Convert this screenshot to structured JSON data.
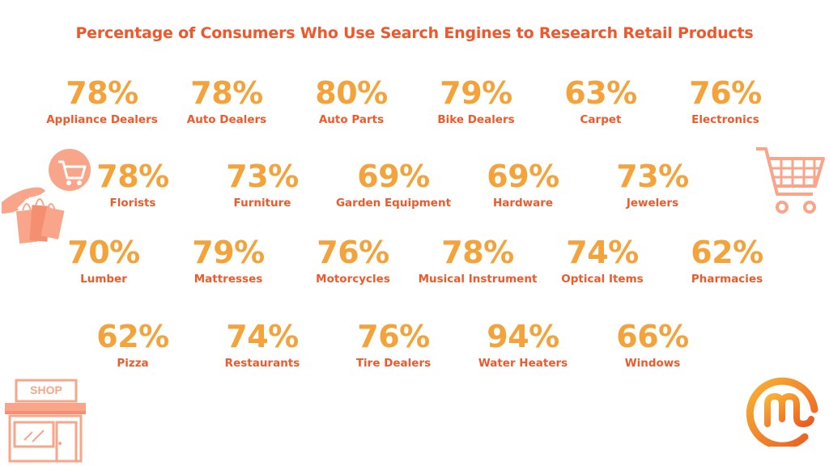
{
  "chart_data": {
    "type": "table",
    "title": "Percentage of Consumers Who Use Search Engines to Research Retail Products",
    "rows": [
      [
        {
          "category": "Appliance Dealers",
          "value": 78,
          "display": "78%"
        },
        {
          "category": "Auto Dealers",
          "value": 78,
          "display": "78%"
        },
        {
          "category": "Auto Parts",
          "value": 80,
          "display": "80%"
        },
        {
          "category": "Bike Dealers",
          "value": 79,
          "display": "79%"
        },
        {
          "category": "Carpet",
          "value": 63,
          "display": "63%"
        },
        {
          "category": "Electronics",
          "value": 76,
          "display": "76%"
        }
      ],
      [
        {
          "category": "Florists",
          "value": 78,
          "display": "78%"
        },
        {
          "category": "Furniture",
          "value": 73,
          "display": "73%"
        },
        {
          "category": "Garden Equipment",
          "value": 69,
          "display": "69%"
        },
        {
          "category": "Hardware",
          "value": 69,
          "display": "69%"
        },
        {
          "category": "Jewelers",
          "value": 73,
          "display": "73%"
        }
      ],
      [
        {
          "category": "Lumber",
          "value": 70,
          "display": "70%"
        },
        {
          "category": "Mattresses",
          "value": 79,
          "display": "79%"
        },
        {
          "category": "Motorcycles",
          "value": 76,
          "display": "76%"
        },
        {
          "category": "Musical Instrument",
          "value": 78,
          "display": "78%"
        },
        {
          "category": "Optical Items",
          "value": 74,
          "display": "74%"
        },
        {
          "category": "Pharmacies",
          "value": 62,
          "display": "62%"
        }
      ],
      [
        {
          "category": "Pizza",
          "value": 62,
          "display": "62%"
        },
        {
          "category": "Restaurants",
          "value": 74,
          "display": "74%"
        },
        {
          "category": "Tire Dealers",
          "value": 76,
          "display": "76%"
        },
        {
          "category": "Water Heaters",
          "value": 94,
          "display": "94%"
        },
        {
          "category": "Windows",
          "value": 66,
          "display": "66%"
        }
      ]
    ]
  },
  "decorations": {
    "shop_sign": "SHOP",
    "icons": [
      "shopping-bags-hand-icon",
      "shopping-cart-icon",
      "shop-storefront-icon",
      "brand-logo-icon"
    ]
  },
  "colors": {
    "title": "#f0572a",
    "value": "#f4a23a",
    "label": "#ef5a2b",
    "icon": "#f8a58a"
  }
}
